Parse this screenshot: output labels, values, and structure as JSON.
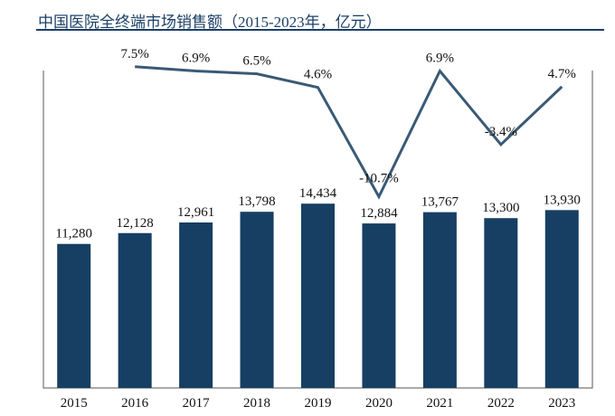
{
  "chart_data": {
    "type": "bar+line",
    "title": "中国医院全终端市场销售额（2015-2023年，亿元）",
    "categories": [
      "2015",
      "2016",
      "2017",
      "2018",
      "2019",
      "2020",
      "2021",
      "2022",
      "2023"
    ],
    "series": [
      {
        "type": "bar",
        "values": [
          11280,
          12128,
          12961,
          13798,
          14434,
          12884,
          13767,
          13300,
          13930
        ],
        "labels": [
          "11,280",
          "12,128",
          "12,961",
          "13,798",
          "14,434",
          "12,884",
          "13,767",
          "13,300",
          "13,930"
        ],
        "color": "#163f63"
      },
      {
        "type": "line",
        "values": [
          null,
          7.5,
          6.9,
          6.5,
          4.6,
          -10.7,
          6.9,
          -3.4,
          4.7
        ],
        "labels": [
          "",
          "7.5%",
          "6.9%",
          "6.5%",
          "4.6%",
          "-10.7%",
          "6.9%",
          "-3.4%",
          "4.7%"
        ],
        "color": "#3a5a75"
      }
    ],
    "grid": false,
    "legend": "none"
  }
}
